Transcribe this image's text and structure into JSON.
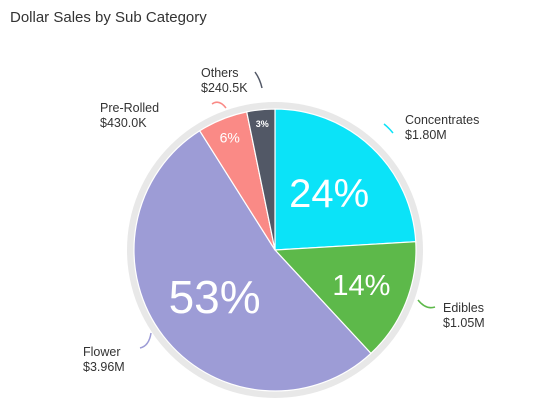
{
  "title": "Dollar Sales by Sub Category",
  "chart_data": {
    "type": "pie",
    "title": "Dollar Sales by Sub Category",
    "start_angle_deg": 0,
    "direction": "clockwise",
    "slices": [
      {
        "name": "Concentrates",
        "value_label": "$1.80M",
        "value": 1.8,
        "pct": 24,
        "pct_label": "24%",
        "color": "#0be3f8"
      },
      {
        "name": "Edibles",
        "value_label": "$1.05M",
        "value": 1.05,
        "pct": 14,
        "pct_label": "14%",
        "color": "#5db94a"
      },
      {
        "name": "Flower",
        "value_label": "$3.96M",
        "value": 3.96,
        "pct": 53,
        "pct_label": "53%",
        "color": "#9d9cd6"
      },
      {
        "name": "Pre-Rolled",
        "value_label": "$430.0K",
        "value": 0.43,
        "pct": 6,
        "pct_label": "6%",
        "color": "#fa8a86"
      },
      {
        "name": "Others",
        "value_label": "$240.5K",
        "value": 0.2405,
        "pct": 3,
        "pct_label": "3%",
        "color": "#525866"
      }
    ],
    "ring_color": "#e8e8e8"
  }
}
